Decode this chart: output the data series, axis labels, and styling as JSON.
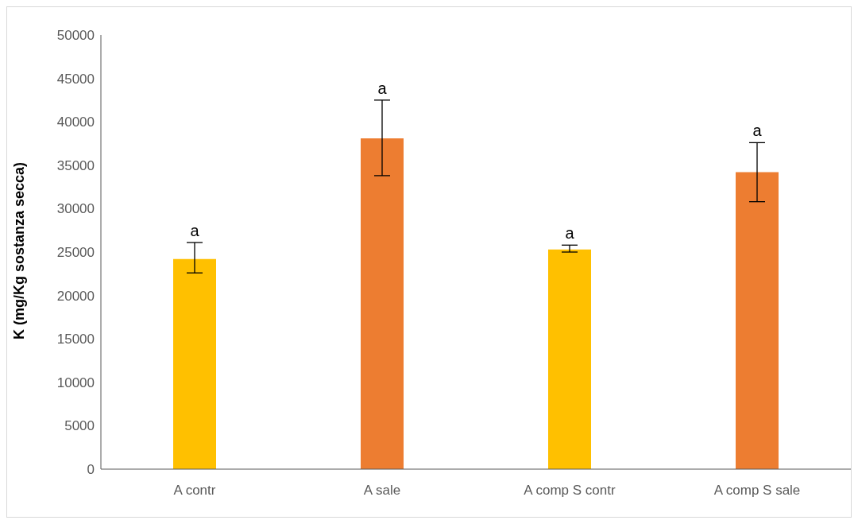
{
  "chart_data": {
    "type": "bar",
    "ylabel": "K (mg/Kg sostanza secca)",
    "categories": [
      "A contr",
      "A sale",
      "A comp S contr",
      "A comp S sale"
    ],
    "values": [
      24200,
      38100,
      25300,
      34200
    ],
    "colors": [
      "#ffc000",
      "#ed7d31",
      "#ffc000",
      "#ed7d31"
    ],
    "errors": [
      [
        22600,
        26100
      ],
      [
        33800,
        42500
      ],
      [
        25000,
        25800
      ],
      [
        30800,
        37600
      ]
    ],
    "annotations": [
      {
        "text": "a",
        "x": "A contr",
        "y": 26100
      },
      {
        "text": "a",
        "x": "A sale",
        "y": 42500
      },
      {
        "text": "a",
        "x": "A comp S contr",
        "y": 25800
      },
      {
        "text": "a",
        "x": "A comp S sale",
        "y": 37600
      }
    ],
    "ylim": [
      0,
      50000
    ],
    "yticks": [
      0,
      5000,
      10000,
      15000,
      20000,
      25000,
      30000,
      35000,
      40000,
      45000,
      50000
    ],
    "grid": false
  }
}
